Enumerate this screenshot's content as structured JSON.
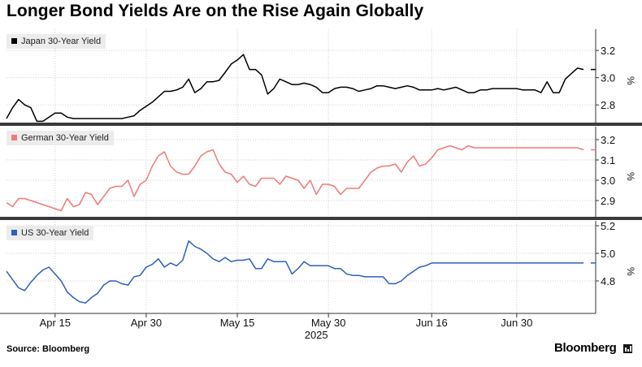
{
  "title": "Longer Bond Yields Are on the Rise Again Globally",
  "source": "Source: Bloomberg",
  "brand": "Bloomberg",
  "chart_data": {
    "type": "line",
    "x_start": "2025-04-07",
    "x_step_days": 1,
    "x_tick_labels": [
      "Apr 15",
      "Apr 30",
      "May 15",
      "May 30",
      "Jun 16",
      "Jun 30"
    ],
    "x_tick_days": [
      8,
      23,
      38,
      53,
      70,
      84
    ],
    "x_range_days": [
      0,
      97
    ],
    "year_label": "2025",
    "panels": [
      {
        "name": "Japan 30-Year Yield",
        "color": "#000000",
        "unit": "%",
        "ylim": [
          2.7,
          3.32
        ],
        "yticks": [
          2.8,
          3.0,
          3.2
        ],
        "ytick_labels": [
          "2.8",
          "3.0",
          "3.2"
        ],
        "x": [
          0,
          1,
          2,
          3,
          4,
          5,
          6,
          7,
          8,
          9,
          10,
          11,
          12,
          13,
          14,
          15,
          16,
          17,
          18,
          19,
          20,
          21,
          22,
          23,
          24,
          25,
          26,
          27,
          28,
          29,
          30,
          31,
          32,
          33,
          34,
          35,
          36,
          37,
          38,
          39,
          40,
          41,
          42,
          43,
          44,
          45,
          46,
          47,
          48,
          49,
          50,
          51,
          52,
          53,
          54,
          55,
          56,
          57,
          58,
          59,
          60,
          61,
          62,
          63,
          64,
          65,
          66,
          67,
          68,
          69,
          70,
          71,
          72,
          73,
          74,
          75,
          76,
          77,
          78,
          79,
          80,
          81,
          82,
          83,
          84,
          85,
          86,
          87,
          88,
          89,
          90,
          91,
          92,
          93,
          94,
          95
        ],
        "values": [
          2.7,
          2.78,
          2.84,
          2.8,
          2.78,
          2.68,
          2.68,
          2.71,
          2.74,
          2.74,
          2.71,
          2.7,
          2.7,
          2.7,
          2.7,
          2.7,
          2.7,
          2.7,
          2.7,
          2.7,
          2.71,
          2.72,
          2.76,
          2.79,
          2.82,
          2.86,
          2.9,
          2.9,
          2.91,
          2.93,
          2.99,
          2.89,
          2.92,
          2.97,
          2.97,
          2.98,
          3.04,
          3.1,
          3.13,
          3.17,
          3.06,
          3.06,
          3.02,
          2.88,
          2.92,
          2.99,
          2.97,
          2.95,
          2.95,
          2.96,
          2.95,
          2.93,
          2.89,
          2.89,
          2.92,
          2.93,
          2.93,
          2.92,
          2.9,
          2.91,
          2.92,
          2.94,
          2.94,
          2.93,
          2.92,
          2.93,
          2.94,
          2.93,
          2.91,
          2.91,
          2.91,
          2.92,
          2.91,
          2.92,
          2.93,
          2.91,
          2.89,
          2.89,
          2.91,
          2.91,
          2.92,
          2.92,
          2.92,
          2.92,
          2.92,
          2.91,
          2.91,
          2.91,
          2.89,
          2.97,
          2.89,
          2.89,
          2.99,
          3.03,
          3.07,
          3.06
        ],
        "last_value": 3.06
      },
      {
        "name": "German 30-Year Yield",
        "color": "#f07a78",
        "unit": "%",
        "ylim": [
          2.84,
          3.24
        ],
        "yticks": [
          2.9,
          3.0,
          3.1,
          3.2
        ],
        "ytick_labels": [
          "2.9",
          "3.0",
          "3.1",
          "3.2"
        ],
        "x": [
          0,
          1,
          2,
          3,
          4,
          5,
          6,
          7,
          8,
          9,
          10,
          11,
          12,
          13,
          14,
          15,
          16,
          17,
          18,
          19,
          20,
          21,
          22,
          23,
          24,
          25,
          26,
          27,
          28,
          29,
          30,
          31,
          32,
          33,
          34,
          35,
          36,
          37,
          38,
          39,
          40,
          41,
          42,
          43,
          44,
          45,
          46,
          47,
          48,
          49,
          50,
          51,
          52,
          53,
          54,
          55,
          56,
          57,
          58,
          59,
          60,
          61,
          62,
          63,
          64,
          65,
          66,
          67,
          68,
          69,
          70,
          71,
          72,
          73,
          74,
          75,
          76,
          77,
          78,
          79,
          80,
          81,
          82,
          83,
          84,
          85,
          86,
          87,
          88,
          89,
          90,
          91,
          92,
          93,
          94,
          95
        ],
        "values": [
          2.89,
          2.87,
          2.91,
          2.91,
          2.9,
          2.89,
          2.88,
          2.87,
          2.86,
          2.85,
          2.91,
          2.87,
          2.88,
          2.94,
          2.93,
          2.88,
          2.92,
          2.96,
          2.97,
          2.97,
          3.0,
          2.92,
          2.98,
          3.0,
          3.07,
          3.12,
          3.14,
          3.07,
          3.04,
          3.03,
          3.03,
          3.07,
          3.12,
          3.14,
          3.15,
          3.08,
          3.04,
          3.03,
          2.99,
          3.02,
          2.98,
          2.97,
          3.01,
          3.01,
          3.01,
          2.98,
          3.02,
          3.01,
          3.0,
          2.96,
          3.0,
          2.93,
          2.98,
          2.98,
          2.97,
          2.93,
          2.96,
          2.96,
          2.96,
          3.0,
          3.04,
          3.06,
          3.07,
          3.07,
          3.08,
          3.04,
          3.09,
          3.12,
          3.07,
          3.08,
          3.11,
          3.15,
          3.16,
          3.17,
          3.16,
          3.15,
          3.17,
          3.16,
          3.16,
          3.16,
          3.16,
          3.16,
          3.16,
          3.16,
          3.16,
          3.16,
          3.16,
          3.16,
          3.16,
          3.16,
          3.16,
          3.16,
          3.16,
          3.16,
          3.16,
          3.15
        ],
        "last_value": 3.15
      },
      {
        "name": "US 30-Year Yield",
        "color": "#2f5fb8",
        "unit": "%",
        "ylim": [
          4.6,
          5.2
        ],
        "yticks": [
          4.8,
          5.0,
          5.2
        ],
        "ytick_labels": [
          "4.8",
          "5.0",
          "5.2"
        ],
        "x": [
          0,
          1,
          2,
          3,
          4,
          5,
          6,
          7,
          8,
          9,
          10,
          11,
          12,
          13,
          14,
          15,
          16,
          17,
          18,
          19,
          20,
          21,
          22,
          23,
          24,
          25,
          26,
          27,
          28,
          29,
          30,
          31,
          32,
          33,
          34,
          35,
          36,
          37,
          38,
          39,
          40,
          41,
          42,
          43,
          44,
          45,
          46,
          47,
          48,
          49,
          50,
          51,
          52,
          53,
          54,
          55,
          56,
          57,
          58,
          59,
          60,
          61,
          62,
          63,
          64,
          65,
          66,
          67,
          68,
          69,
          70,
          71,
          72,
          73,
          74,
          75,
          76,
          77,
          78,
          79,
          80,
          81,
          82,
          83,
          84,
          85,
          86,
          87,
          88,
          89,
          90,
          91,
          92,
          93,
          94,
          95
        ],
        "values": [
          4.87,
          4.81,
          4.75,
          4.73,
          4.79,
          4.84,
          4.88,
          4.9,
          4.85,
          4.8,
          4.72,
          4.68,
          4.65,
          4.64,
          4.68,
          4.71,
          4.77,
          4.8,
          4.8,
          4.78,
          4.77,
          4.83,
          4.84,
          4.9,
          4.92,
          4.96,
          4.9,
          4.93,
          4.91,
          4.95,
          5.09,
          5.05,
          5.03,
          5.0,
          4.96,
          4.94,
          4.97,
          4.94,
          4.95,
          4.95,
          4.96,
          4.89,
          4.89,
          4.96,
          4.94,
          4.94,
          4.94,
          4.85,
          4.89,
          4.94,
          4.91,
          4.91,
          4.91,
          4.91,
          4.89,
          4.89,
          4.85,
          4.84,
          4.84,
          4.83,
          4.83,
          4.83,
          4.83,
          4.78,
          4.78,
          4.8,
          4.84,
          4.87,
          4.9,
          4.91,
          4.93,
          4.93,
          4.93,
          4.93,
          4.93,
          4.93,
          4.93,
          4.93,
          4.93,
          4.93,
          4.93,
          4.93,
          4.93,
          4.93,
          4.93,
          4.93,
          4.93,
          4.93,
          4.93,
          4.93,
          4.93,
          4.93,
          4.93,
          4.93,
          4.93,
          4.93
        ],
        "last_value": 4.93
      }
    ]
  }
}
